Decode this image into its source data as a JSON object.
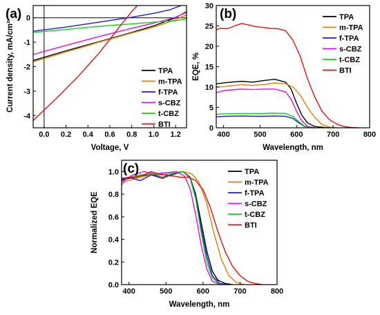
{
  "colors": {
    "TPA": "#000000",
    "m-TPA": "#e07f00",
    "f-TPA": "#1a1ad6",
    "s-CBZ": "#e010e0",
    "t-CBZ": "#18cc18",
    "BTI": "#e01010"
  },
  "chart_data": [
    {
      "panel_label": "(a)",
      "type": "line",
      "xlabel": "Voltage, V",
      "ylabel": "Current density, mA/cm²",
      "xlim": [
        -0.1,
        1.3
      ],
      "ylim": [
        -4.5,
        0.5
      ],
      "xticks": [
        0.0,
        0.2,
        0.4,
        0.6,
        0.8,
        1.0,
        1.2
      ],
      "xtick_labels": [
        "0.0",
        "0.2",
        "0.4",
        "0.6",
        "0.8",
        "1.0",
        "1.2"
      ],
      "yticks": [
        -4,
        -3,
        -2,
        -1,
        0
      ],
      "ytick_labels": [
        "-4",
        "-3",
        "-2",
        "-1",
        "0"
      ],
      "legend_position": "lower-right",
      "reference_lines": {
        "x": 0,
        "y": 0
      },
      "series": [
        {
          "name": "TPA",
          "x": [
            -0.1,
            0.2,
            0.5,
            0.8,
            1.0,
            1.2,
            1.3
          ],
          "y": [
            -1.75,
            -1.35,
            -0.98,
            -0.6,
            -0.33,
            0.0,
            0.25
          ]
        },
        {
          "name": "m-TPA",
          "x": [
            -0.1,
            0.2,
            0.5,
            0.8,
            1.0,
            1.2,
            1.3
          ],
          "y": [
            -1.8,
            -1.4,
            -1.0,
            -0.62,
            -0.38,
            -0.08,
            0.12
          ]
        },
        {
          "name": "f-TPA",
          "x": [
            -0.1,
            0.2,
            0.5,
            0.8,
            1.0,
            1.15,
            1.25
          ],
          "y": [
            -0.55,
            -0.38,
            -0.18,
            0.02,
            0.18,
            0.33,
            0.5
          ]
        },
        {
          "name": "s-CBZ",
          "x": [
            -0.1,
            0.2,
            0.5,
            0.8,
            1.0,
            1.2,
            1.3
          ],
          "y": [
            -1.5,
            -1.13,
            -0.77,
            -0.43,
            -0.22,
            0.02,
            0.22
          ]
        },
        {
          "name": "t-CBZ",
          "x": [
            -0.1,
            0.2,
            0.5,
            0.8,
            1.0,
            1.2,
            1.3
          ],
          "y": [
            -0.6,
            -0.48,
            -0.35,
            -0.25,
            -0.18,
            -0.12,
            -0.05
          ]
        },
        {
          "name": "BTI",
          "x": [
            -0.1,
            0.1,
            0.3,
            0.5,
            0.6,
            0.7,
            0.8,
            0.85
          ],
          "y": [
            -4.2,
            -3.35,
            -2.45,
            -1.45,
            -0.88,
            -0.3,
            0.25,
            0.5
          ]
        }
      ]
    },
    {
      "panel_label": "(b)",
      "type": "line",
      "xlabel": "Wavelength, nm",
      "ylabel": "EQE, %",
      "xlim": [
        380,
        800
      ],
      "ylim": [
        0,
        30
      ],
      "xticks": [
        400,
        500,
        600,
        700,
        800
      ],
      "xtick_labels": [
        "400",
        "500",
        "600",
        "700",
        "800"
      ],
      "yticks": [
        0,
        5,
        10,
        15,
        20,
        25,
        30
      ],
      "ytick_labels": [
        "0",
        "5",
        "10",
        "15",
        "20",
        "25",
        "30"
      ],
      "legend_position": "top-right",
      "series": [
        {
          "name": "TPA",
          "x": [
            380,
            400,
            420,
            450,
            480,
            510,
            540,
            570,
            585,
            600,
            615,
            630,
            650,
            680,
            700
          ],
          "y": [
            10.8,
            11.0,
            11.2,
            11.4,
            11.2,
            11.6,
            11.9,
            11.2,
            9.5,
            6.0,
            3.0,
            1.2,
            0.3,
            0.05,
            0.0
          ]
        },
        {
          "name": "m-TPA",
          "x": [
            380,
            400,
            420,
            450,
            480,
            510,
            540,
            570,
            590,
            610,
            630,
            650,
            670,
            690,
            710
          ],
          "y": [
            10.0,
            10.1,
            10.3,
            10.6,
            10.4,
            10.6,
            11.0,
            10.8,
            10.0,
            8.0,
            5.0,
            2.5,
            0.8,
            0.2,
            0.0
          ]
        },
        {
          "name": "f-TPA",
          "x": [
            380,
            400,
            450,
            500,
            540,
            570,
            590,
            605,
            620,
            640
          ],
          "y": [
            2.7,
            2.8,
            2.9,
            2.8,
            2.9,
            2.8,
            2.3,
            1.3,
            0.4,
            0.0
          ]
        },
        {
          "name": "s-CBZ",
          "x": [
            380,
            400,
            420,
            450,
            480,
            510,
            540,
            570,
            585,
            600,
            615,
            630,
            650
          ],
          "y": [
            8.6,
            9.1,
            9.3,
            9.5,
            9.4,
            9.5,
            9.5,
            8.8,
            7.0,
            4.0,
            1.6,
            0.4,
            0.0
          ]
        },
        {
          "name": "t-CBZ",
          "x": [
            380,
            400,
            450,
            500,
            540,
            570,
            590,
            605,
            620,
            640
          ],
          "y": [
            3.3,
            3.4,
            3.5,
            3.5,
            3.6,
            3.5,
            2.8,
            1.6,
            0.5,
            0.0
          ]
        },
        {
          "name": "BTI",
          "x": [
            380,
            390,
            410,
            430,
            450,
            470,
            490,
            510,
            530,
            550,
            570,
            590,
            610,
            630,
            650,
            670,
            690,
            710,
            730,
            750,
            770
          ],
          "y": [
            24.0,
            24.4,
            24.3,
            25.0,
            25.6,
            25.2,
            24.8,
            24.6,
            24.4,
            24.3,
            23.8,
            21.5,
            17.5,
            12.0,
            7.5,
            4.0,
            2.0,
            0.9,
            0.3,
            0.1,
            0.0
          ]
        }
      ]
    },
    {
      "panel_label": "(c)",
      "type": "line",
      "xlabel": "Wavelength, nm",
      "ylabel": "Normalized EQE",
      "xlim": [
        380,
        800
      ],
      "ylim": [
        0.0,
        1.1
      ],
      "xticks": [
        400,
        500,
        600,
        700,
        800
      ],
      "xtick_labels": [
        "400",
        "500",
        "600",
        "700",
        "800"
      ],
      "yticks": [
        0.0,
        0.2,
        0.4,
        0.6,
        0.8,
        1.0
      ],
      "ytick_labels": [
        "0.0",
        "0.2",
        "0.4",
        "0.6",
        "0.8",
        "1.0"
      ],
      "legend_position": "top-right",
      "series": [
        {
          "name": "TPA",
          "x": [
            380,
            400,
            430,
            460,
            490,
            520,
            545,
            565,
            580,
            595,
            610,
            625,
            640,
            660,
            680
          ],
          "y": [
            0.92,
            0.94,
            0.96,
            0.98,
            0.95,
            0.98,
            1.0,
            0.95,
            0.8,
            0.55,
            0.3,
            0.12,
            0.04,
            0.01,
            0.0
          ]
        },
        {
          "name": "m-TPA",
          "x": [
            380,
            400,
            430,
            460,
            490,
            520,
            545,
            570,
            590,
            610,
            630,
            650,
            670,
            690,
            710
          ],
          "y": [
            0.91,
            0.92,
            0.95,
            0.97,
            0.95,
            0.97,
            1.0,
            0.98,
            0.9,
            0.72,
            0.45,
            0.22,
            0.08,
            0.02,
            0.0
          ]
        },
        {
          "name": "f-TPA",
          "x": [
            380,
            400,
            430,
            460,
            490,
            520,
            545,
            565,
            580,
            595,
            610,
            625,
            645,
            665
          ],
          "y": [
            0.93,
            0.95,
            0.92,
            0.97,
            0.94,
            0.98,
            1.0,
            0.95,
            0.78,
            0.5,
            0.25,
            0.08,
            0.01,
            0.0
          ]
        },
        {
          "name": "s-CBZ",
          "x": [
            380,
            390,
            410,
            440,
            470,
            500,
            530,
            550,
            565,
            580,
            595,
            610,
            625,
            645
          ],
          "y": [
            0.88,
            0.93,
            0.97,
            1.0,
            0.98,
            0.99,
            1.0,
            0.96,
            0.85,
            0.62,
            0.35,
            0.14,
            0.03,
            0.0
          ]
        },
        {
          "name": "t-CBZ",
          "x": [
            380,
            400,
            430,
            460,
            490,
            520,
            545,
            565,
            580,
            595,
            610,
            625,
            645
          ],
          "y": [
            0.94,
            0.95,
            0.97,
            0.98,
            0.97,
            0.99,
            1.0,
            0.94,
            0.76,
            0.46,
            0.2,
            0.06,
            0.0
          ]
        },
        {
          "name": "BTI",
          "x": [
            380,
            400,
            420,
            440,
            460,
            480,
            500,
            520,
            540,
            560,
            580,
            600,
            620,
            640,
            660,
            680,
            700,
            720,
            740,
            760
          ],
          "y": [
            0.94,
            0.95,
            0.95,
            0.97,
            1.0,
            0.98,
            0.97,
            0.96,
            0.95,
            0.95,
            0.92,
            0.84,
            0.68,
            0.47,
            0.29,
            0.16,
            0.08,
            0.03,
            0.01,
            0.0
          ]
        }
      ]
    }
  ]
}
